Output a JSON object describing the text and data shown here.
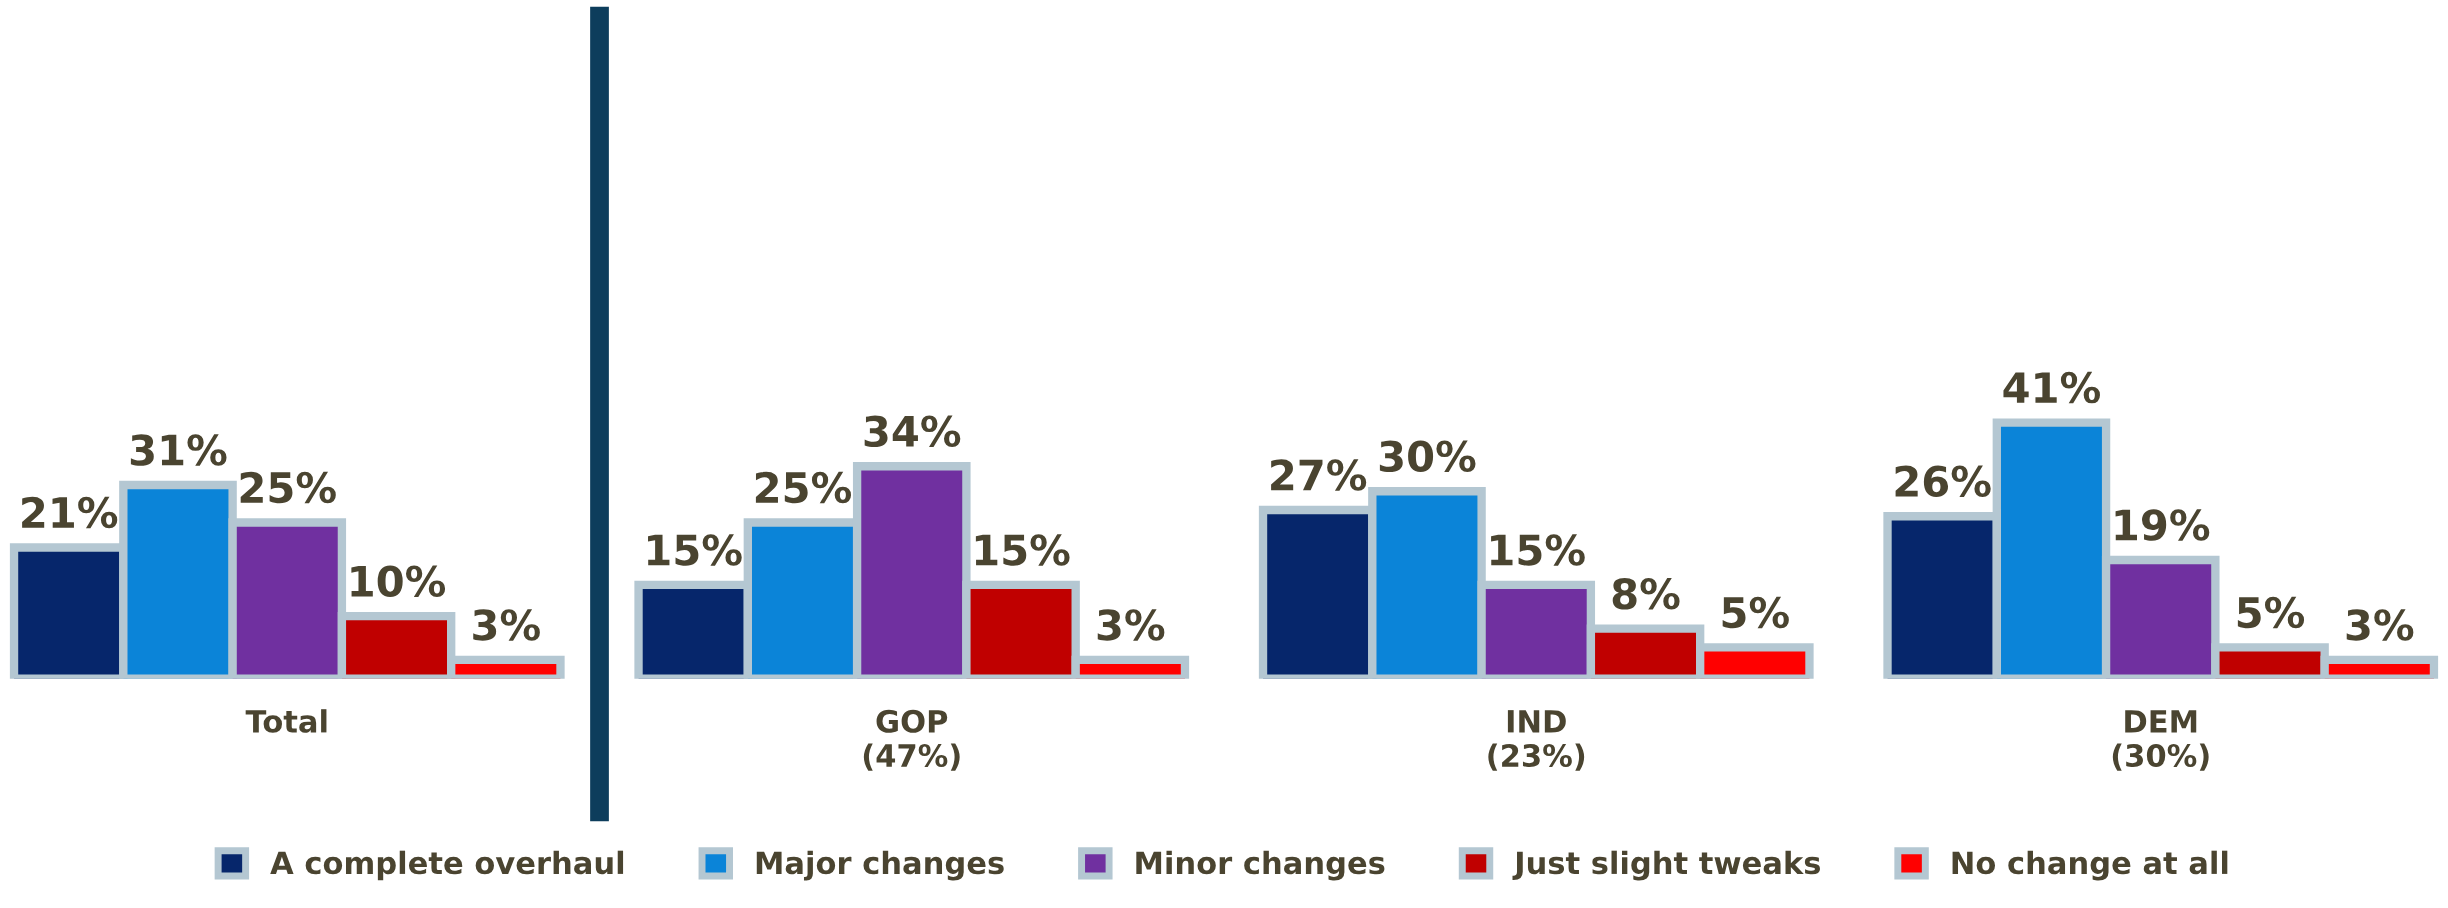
{
  "chart_data": {
    "type": "bar",
    "categories": [
      "Total",
      "GOP\n(47%)",
      "IND\n(23%)",
      "DEM\n(30%)"
    ],
    "series": [
      {
        "name": "A complete overhaul",
        "color": "#06266b",
        "values": [
          21,
          15,
          27,
          26
        ],
        "value_labels": [
          "21%",
          "15%",
          "27%",
          "26%"
        ]
      },
      {
        "name": "Major changes",
        "color": "#0b84d8",
        "values": [
          31,
          25,
          30,
          41
        ],
        "value_labels": [
          "31%",
          "25%",
          "30%",
          "41%"
        ]
      },
      {
        "name": "Minor changes",
        "color": "#7030a0",
        "values": [
          25,
          34,
          15,
          19
        ],
        "value_labels": [
          "25%",
          "34%",
          "15%",
          "19%"
        ]
      },
      {
        "name": "Just slight tweaks",
        "color": "#c00000",
        "values": [
          10,
          15,
          8,
          5
        ],
        "value_labels": [
          "10%",
          "15%",
          "8%",
          "5%"
        ]
      },
      {
        "name": "No change at all",
        "color": "#ff0000",
        "values": [
          3,
          3,
          5,
          3
        ],
        "value_labels": [
          "3%",
          "3%",
          "5%",
          "3%"
        ]
      }
    ],
    "legend": "bottom",
    "grid": false
  }
}
